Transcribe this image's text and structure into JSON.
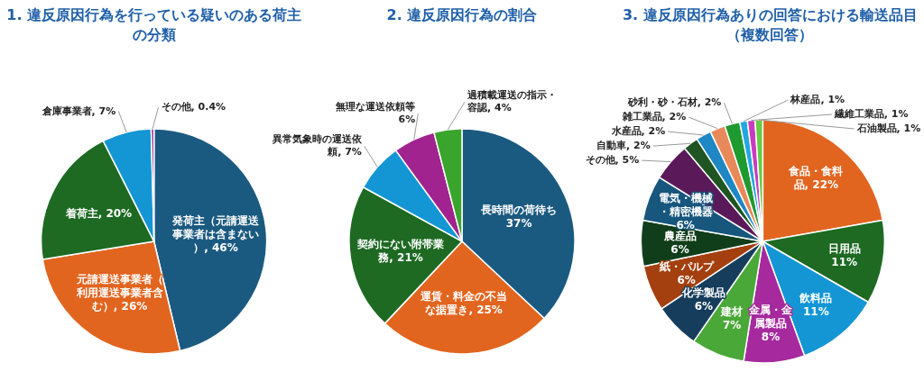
{
  "chart_data": [
    {
      "type": "pie",
      "title": "1. 違反原因行為を行っている疑いのある荷主の分類",
      "categories": [
        "発荷主（元請運送事業者は含まない）",
        "元請運送事業者（利用運送事業者含む）",
        "着荷主",
        "倉庫事業者",
        "その他"
      ],
      "values": [
        46,
        26,
        20,
        7,
        0.4
      ],
      "value_labels": [
        "46%",
        "26%",
        "20%",
        "7%",
        "0.4%"
      ],
      "colors": [
        "#1b5a80",
        "#e2651f",
        "#1e6a23",
        "#1496d4",
        "#a62a8e"
      ]
    },
    {
      "type": "pie",
      "title": "2. 違反原因行為の割合",
      "categories": [
        "長時間の荷待ち",
        "運賃・料金の不当な据置き",
        "契約にない附帯業務",
        "異常気象時の運送依頼",
        "無理な運送依頼等",
        "過積載運送の指示・容認"
      ],
      "values": [
        37,
        25,
        21,
        7,
        6,
        4
      ],
      "value_labels": [
        "37%",
        "25%",
        "21%",
        "7%",
        "6%",
        "4%"
      ],
      "colors": [
        "#1b5a80",
        "#e2651f",
        "#1e6a23",
        "#1496d4",
        "#a0238f",
        "#3aa52c"
      ]
    },
    {
      "type": "pie",
      "title": "3. 違反原因行為ありの回答における輸送品目（複数回答）",
      "categories": [
        "食品・食料品",
        "日用品",
        "飲料品",
        "金属・金属製品",
        "建材",
        "化学製品",
        "紙・パルプ",
        "農産品",
        "電気・機械・精密機器",
        "その他",
        "自動車",
        "水産品",
        "雑工業品",
        "砂利・砂・石材",
        "林産品",
        "繊維工業品",
        "石油製品"
      ],
      "values": [
        22,
        11,
        11,
        8,
        7,
        6,
        6,
        6,
        6,
        5,
        2,
        2,
        2,
        2,
        1,
        1,
        1
      ],
      "value_labels": [
        "22%",
        "11%",
        "11%",
        "8%",
        "7%",
        "6%",
        "6%",
        "6%",
        "6%",
        "5%",
        "2%",
        "2%",
        "2%",
        "2%",
        "1%",
        "1%",
        "1%"
      ],
      "colors": [
        "#e2651f",
        "#1e6a23",
        "#1496d4",
        "#a62a9e",
        "#4aa838",
        "#163d5c",
        "#a4400f",
        "#113e1a",
        "#17567d",
        "#5a1a5a",
        "#1e5523",
        "#1f87c4",
        "#e8895a",
        "#1f9a2e",
        "#22a8e0",
        "#c83cc0",
        "#66cc44"
      ]
    }
  ]
}
